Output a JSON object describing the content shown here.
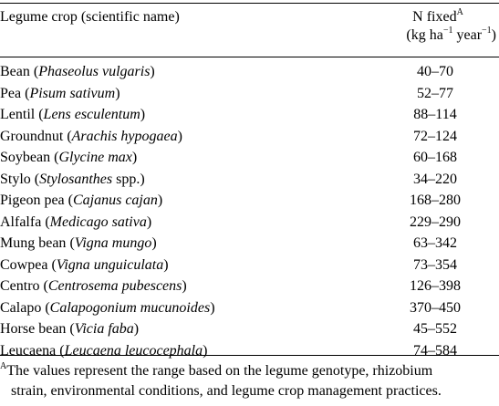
{
  "table": {
    "header": {
      "crop_col": "Legume crop (scientific name)",
      "n_fixed_label": "N fixed",
      "n_fixed_note_mark": "A",
      "unit_open": "(kg ha",
      "unit_exp1": "−1",
      "unit_mid": " year",
      "unit_exp2": "−1",
      "unit_close": ")"
    },
    "rows": [
      {
        "common": "Bean",
        "scientific": "Phaseolus vulgaris",
        "range": "40–70"
      },
      {
        "common": "Pea",
        "scientific": "Pisum sativum",
        "range": "52–77"
      },
      {
        "common": "Lentil",
        "scientific": "Lens esculentum",
        "range": "88–114"
      },
      {
        "common": "Groundnut",
        "scientific": "Arachis hypogaea",
        "range": "72–124"
      },
      {
        "common": "Soybean",
        "scientific": "Glycine max",
        "range": "60–168"
      },
      {
        "common": "Stylo",
        "scientific": "Stylosanthes",
        "suffix": " spp.",
        "range": "34–220"
      },
      {
        "common": "Pigeon pea",
        "scientific": "Cajanus cajan",
        "range": "168–280"
      },
      {
        "common": "Alfalfa",
        "scientific": "Medicago sativa",
        "range": "229–290"
      },
      {
        "common": "Mung bean",
        "scientific": "Vigna mungo",
        "range": "63–342"
      },
      {
        "common": "Cowpea",
        "scientific": "Vigna unguiculata",
        "range": "73–354"
      },
      {
        "common": "Centro",
        "scientific": "Centrosema pubescens",
        "range": "126–398"
      },
      {
        "common": "Calapo",
        "scientific": "Calapogonium mucunoides",
        "range": "370–450"
      },
      {
        "common": "Horse bean",
        "scientific": "Vicia faba",
        "range": "45–552"
      },
      {
        "common": "Leucaena",
        "scientific": "Leucaena leucocephala",
        "range": "74–584"
      }
    ],
    "footnote": {
      "mark": "A",
      "line1": "The values represent the range based on the legume genotype, rhizobium",
      "line2": "strain, environmental conditions, and legume crop management practices."
    }
  }
}
